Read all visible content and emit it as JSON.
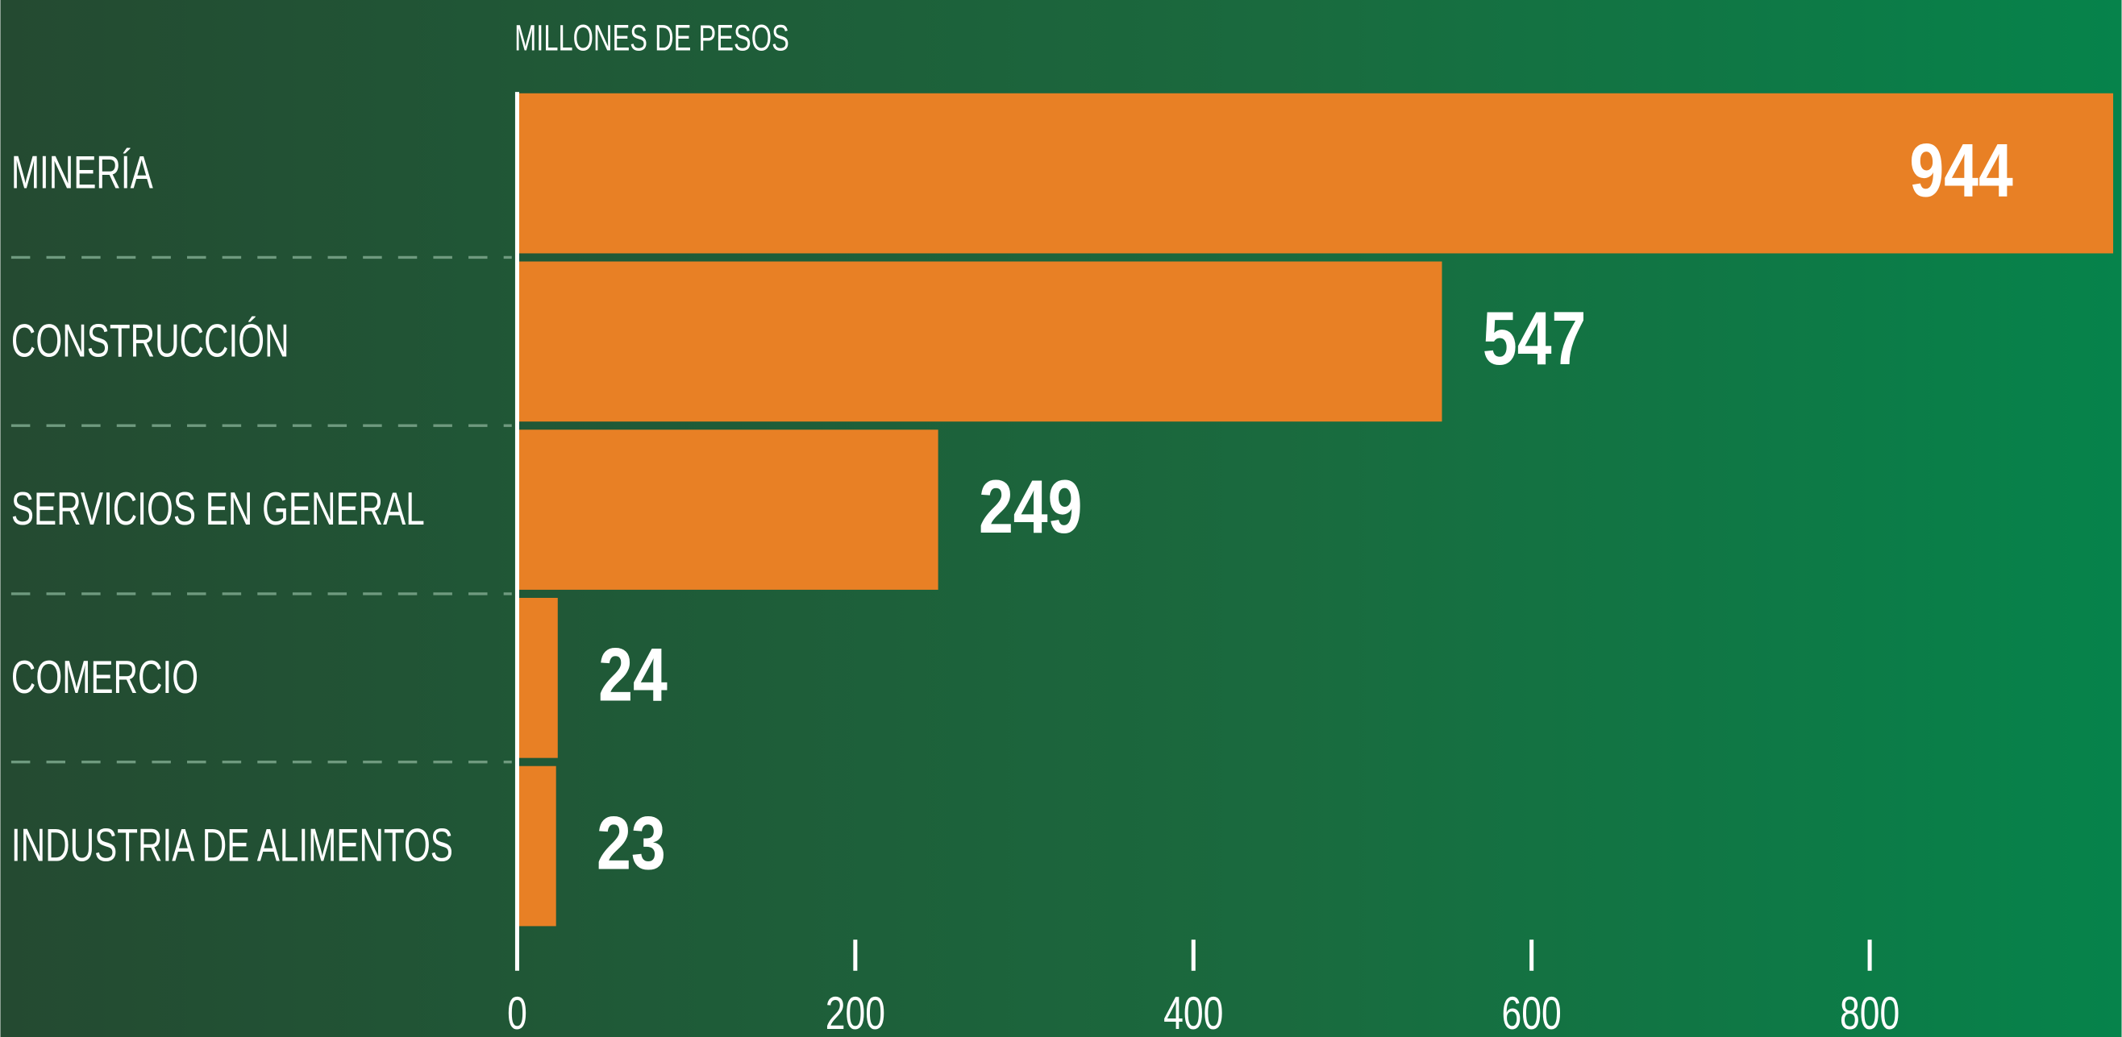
{
  "chart_data": {
    "type": "barh",
    "subtitle": "MILLONES DE PESOS",
    "categories": [
      "MINERÍA",
      "CONSTRUCCIÓN",
      "SERVICIOS EN GENERAL",
      "COMERCIO",
      "INDUSTRIA DE ALIMENTOS"
    ],
    "values": [
      944,
      547,
      249,
      24,
      23
    ],
    "color": "#e88025",
    "xlim": [
      0,
      949
    ],
    "xticks": [
      0,
      200,
      400,
      600,
      800
    ]
  }
}
